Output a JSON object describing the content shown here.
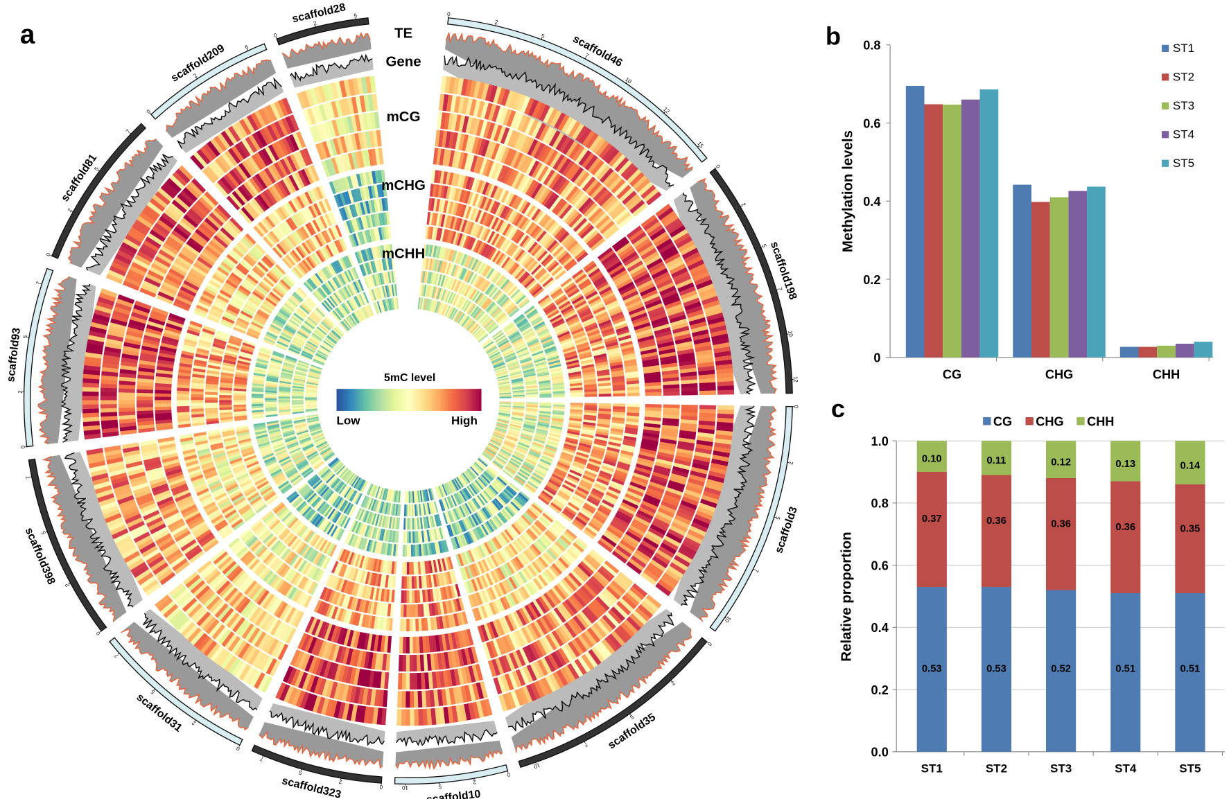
{
  "panel_labels": {
    "a": "a",
    "b": "b",
    "c": "c"
  },
  "circos": {
    "track_labels": [
      "TE",
      "Gene",
      "mCG",
      "mCHG",
      "mCHH"
    ],
    "legend": {
      "title": "5mC level",
      "low": "Low",
      "high": "High",
      "colormap": [
        "#2b4f9e",
        "#3288bd",
        "#66c2a5",
        "#abdda4",
        "#e6f598",
        "#ffffbf",
        "#fee08b",
        "#fdae61",
        "#f46d43",
        "#d53e4f",
        "#9e0142"
      ]
    },
    "colors": {
      "te_line": "#e8643c",
      "track_fill": "#999999",
      "gene_line": "#111111",
      "ideogram_dark": "#333333",
      "ideogram_light": "#d9eef2"
    },
    "scaffolds": [
      {
        "name": "scaffold46",
        "style": "light",
        "ticks": [
          "0",
          "2",
          "5",
          "7",
          "10",
          "12",
          "15"
        ]
      },
      {
        "name": "scaffold198",
        "style": "dark",
        "ticks": [
          "0",
          "2",
          "5",
          "7",
          "10",
          "12"
        ]
      },
      {
        "name": "scaffold3",
        "style": "light",
        "ticks": [
          "0",
          "2",
          "5",
          "7",
          "10"
        ]
      },
      {
        "name": "scaffold35",
        "style": "dark",
        "ticks": [
          "0",
          "2",
          "5",
          "7",
          "10"
        ]
      },
      {
        "name": "scaffold10",
        "style": "light",
        "ticks": [
          "0",
          "2",
          "5",
          "10"
        ]
      },
      {
        "name": "scaffold323",
        "style": "dark",
        "ticks": [
          "0",
          "2",
          "5",
          "7"
        ]
      },
      {
        "name": "scaffold31",
        "style": "light",
        "ticks": [
          "0",
          "2",
          "5",
          "7"
        ]
      },
      {
        "name": "scaffold398",
        "style": "dark",
        "ticks": [
          "0",
          "2",
          "5",
          "7"
        ]
      },
      {
        "name": "scaffold93",
        "style": "light",
        "ticks": [
          "0",
          "2",
          "5",
          "7"
        ]
      },
      {
        "name": "scaffold81",
        "style": "dark",
        "ticks": [
          "0",
          "2",
          "5",
          "7"
        ]
      },
      {
        "name": "scaffold209",
        "style": "light",
        "ticks": [
          "0",
          "2",
          "5"
        ]
      },
      {
        "name": "scaffold28",
        "style": "dark",
        "ticks": [
          "0",
          "2",
          "5"
        ]
      }
    ]
  },
  "chart_data": [
    {
      "type": "bar",
      "panel": "b",
      "categories": [
        "CG",
        "CHG",
        "CHH"
      ],
      "series": [
        {
          "name": "ST1",
          "color": "#4f7bb3",
          "values": [
            0.695,
            0.442,
            0.027
          ]
        },
        {
          "name": "ST2",
          "color": "#bc4d48",
          "values": [
            0.648,
            0.398,
            0.027
          ]
        },
        {
          "name": "ST3",
          "color": "#9bbb59",
          "values": [
            0.647,
            0.41,
            0.03
          ]
        },
        {
          "name": "ST4",
          "color": "#7d5f9f",
          "values": [
            0.66,
            0.426,
            0.035
          ]
        },
        {
          "name": "ST5",
          "color": "#4aa3b9",
          "values": [
            0.686,
            0.437,
            0.04
          ]
        }
      ],
      "ylabel": "Methylation levels",
      "ylim": [
        0,
        0.8
      ],
      "yticks": [
        "0",
        "0.2",
        "0.4",
        "0.6",
        "0.8"
      ],
      "legend": "right",
      "grid": false
    },
    {
      "type": "bar",
      "stacked": true,
      "panel": "c",
      "categories": [
        "ST1",
        "ST2",
        "ST3",
        "ST4",
        "ST5"
      ],
      "series": [
        {
          "name": "CG",
          "color": "#4f7bb3",
          "values": [
            0.53,
            0.53,
            0.52,
            0.51,
            0.51
          ],
          "labels": [
            "0.53",
            "0.53",
            "0.52",
            "0.51",
            "0.51"
          ]
        },
        {
          "name": "CHG",
          "color": "#bc4d48",
          "values": [
            0.37,
            0.36,
            0.36,
            0.36,
            0.35
          ],
          "labels": [
            "0.37",
            "0.36",
            "0.36",
            "0.36",
            "0.35"
          ]
        },
        {
          "name": "CHH",
          "color": "#9bbb59",
          "values": [
            0.1,
            0.11,
            0.12,
            0.13,
            0.14
          ],
          "labels": [
            "0.10",
            "0.11",
            "0.12",
            "0.13",
            "0.14"
          ]
        }
      ],
      "ylabel": "Relative proportion",
      "ylim": [
        0,
        1.0
      ],
      "yticks": [
        "0.0",
        "0.2",
        "0.4",
        "0.6",
        "0.8",
        "1.0"
      ],
      "legend": "top",
      "grid": true
    }
  ]
}
